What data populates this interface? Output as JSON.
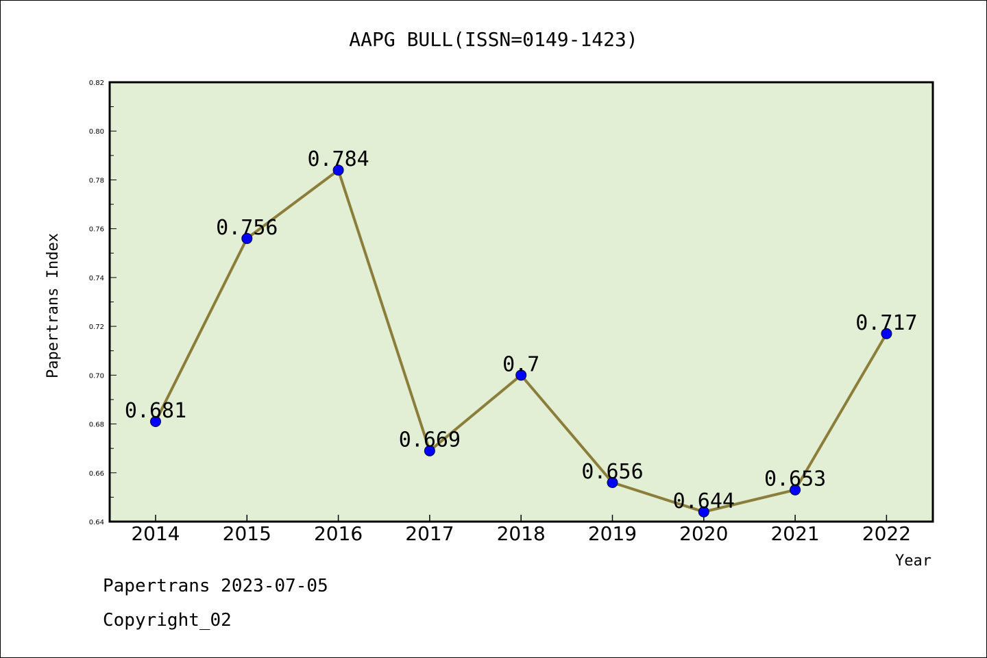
{
  "chart_data": {
    "type": "line",
    "title": "AAPG BULL(ISSN=0149-1423)",
    "xlabel": "Year",
    "ylabel": "Papertrans Index",
    "categories": [
      "2014",
      "2015",
      "2016",
      "2017",
      "2018",
      "2019",
      "2020",
      "2021",
      "2022"
    ],
    "values": [
      0.681,
      0.756,
      0.784,
      0.669,
      0.7,
      0.656,
      0.644,
      0.653,
      0.717
    ],
    "data_labels": [
      "0.681",
      "0.756",
      "0.784",
      "0.669",
      "0.7",
      "0.656",
      "0.644",
      "0.653",
      "0.717"
    ],
    "ylim": [
      0.64,
      0.82
    ],
    "yticks": [
      "0.64",
      "0.66",
      "0.68",
      "0.70",
      "0.72",
      "0.74",
      "0.76",
      "0.78",
      "0.80",
      "0.82"
    ],
    "grid": false,
    "line_color": "#8b7d3a",
    "marker_color": "#0000ff",
    "plot_background": "#e2efd4"
  },
  "footer": {
    "line1": "Papertrans 2023-07-05",
    "line2": "Copyright_02"
  }
}
